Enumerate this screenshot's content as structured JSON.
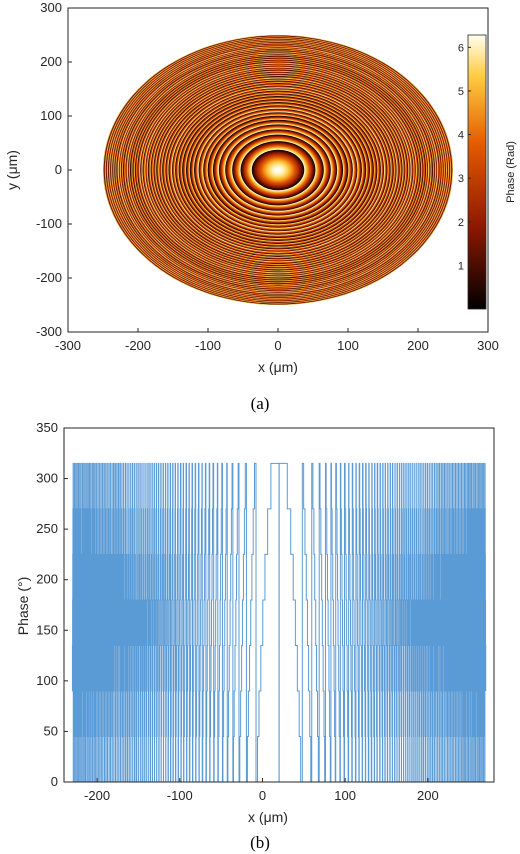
{
  "chart_data": [
    {
      "type": "heatmap",
      "xlabel": "x (μm)",
      "ylabel": "y (μm)",
      "xlim": [
        -300,
        300
      ],
      "ylim": [
        -300,
        300
      ],
      "xticks": [
        -300,
        -200,
        -100,
        0,
        100,
        200,
        300
      ],
      "yticks": [
        -300,
        -200,
        -100,
        0,
        100,
        200,
        300
      ],
      "description": "",
      "aperture_radius": 250,
      "colorbar": {
        "label": "Phase (Rad)",
        "range": [
          0,
          6.283
        ],
        "ticks": [
          1,
          2,
          3,
          4,
          5,
          6
        ]
      },
      "caption": "(a)"
    },
    {
      "type": "line",
      "xlabel": "x (μm)",
      "ylabel": "Phase (°)",
      "xlim": [
        -240,
        280
      ],
      "ylim": [
        0,
        350
      ],
      "xticks": [
        -200,
        -100,
        0,
        100,
        200
      ],
      "yticks": [
        0,
        50,
        100,
        150,
        200,
        250,
        300,
        350
      ],
      "line_color": "#5b9bd5",
      "grid": false,
      "series": [
        {
          "center": 20,
          "extent": [
            -230,
            270
          ],
          "max_value": 315,
          "levels": 8,
          "step": 45
        }
      ],
      "caption": "(b)"
    }
  ]
}
